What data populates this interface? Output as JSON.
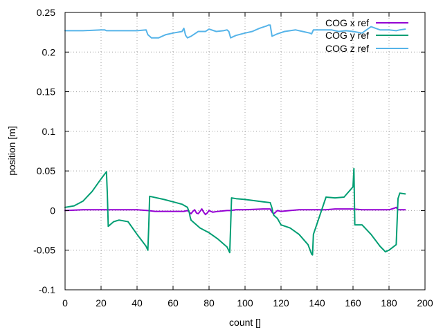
{
  "chart_data": {
    "type": "line",
    "title": "",
    "xlabel": "count []",
    "ylabel": "position [m]",
    "xlim": [
      0,
      200
    ],
    "ylim": [
      -0.1,
      0.25
    ],
    "xticks": [
      "0",
      "20",
      "40",
      "60",
      "80",
      "100",
      "120",
      "140",
      "160",
      "180",
      "200"
    ],
    "yticks": [
      "-0.1",
      "-0.05",
      "0",
      "0.05",
      "0.1",
      "0.15",
      "0.2",
      "0.25"
    ],
    "grid": true,
    "legend_position": "top-right",
    "series": [
      {
        "name": "COG x ref",
        "color": "#9400d3",
        "x": [
          0,
          10,
          20,
          23,
          30,
          40,
          46,
          50,
          60,
          66,
          68,
          69,
          70,
          71,
          72,
          73,
          74,
          75,
          76,
          77,
          78,
          79,
          80,
          82,
          85,
          90,
          92,
          95,
          100,
          110,
          114,
          115,
          116,
          117,
          118,
          120,
          125,
          130,
          138,
          145,
          150,
          155,
          160,
          165,
          170,
          175,
          180,
          183,
          184,
          185,
          189
        ],
        "y": [
          0.0,
          0.001,
          0.001,
          0.001,
          0.001,
          0.001,
          0.0,
          -0.001,
          -0.001,
          -0.001,
          0.0,
          -0.002,
          -0.004,
          -0.001,
          0.001,
          -0.003,
          -0.004,
          -0.001,
          0.002,
          -0.002,
          -0.005,
          -0.003,
          0.0,
          -0.002,
          -0.001,
          0.0,
          0.0,
          0.001,
          0.001,
          0.002,
          0.002,
          -0.002,
          -0.004,
          -0.002,
          0.0,
          -0.001,
          0.0,
          0.001,
          0.001,
          0.001,
          0.002,
          0.002,
          0.002,
          0.001,
          0.001,
          0.001,
          0.001,
          0.003,
          0.004,
          0.001,
          0.001
        ]
      },
      {
        "name": "COG y ref",
        "color": "#009e73",
        "x": [
          0,
          5,
          10,
          15,
          20,
          23,
          23.5,
          24,
          27,
          30,
          35,
          40,
          45,
          46,
          46.5,
          47,
          55,
          60,
          65,
          68,
          69,
          69.5,
          70,
          75,
          80,
          85,
          90,
          91.5,
          92,
          92.5,
          95,
          100,
          110,
          114,
          115,
          115.5,
          116,
          118,
          120,
          125,
          130,
          135,
          137,
          137.5,
          138,
          145,
          150,
          155,
          160,
          160.5,
          161,
          165,
          170,
          175,
          178,
          180,
          184,
          185,
          186,
          189
        ],
        "y": [
          0.004,
          0.006,
          0.012,
          0.024,
          0.04,
          0.049,
          0.02,
          -0.02,
          -0.014,
          -0.012,
          -0.014,
          -0.03,
          -0.045,
          -0.05,
          -0.02,
          0.018,
          0.014,
          0.011,
          0.008,
          0.004,
          -0.002,
          -0.008,
          -0.012,
          -0.022,
          -0.028,
          -0.036,
          -0.046,
          -0.053,
          -0.02,
          0.016,
          0.015,
          0.014,
          0.011,
          0.01,
          0.003,
          -0.003,
          -0.006,
          -0.01,
          -0.018,
          -0.022,
          -0.03,
          -0.043,
          -0.055,
          -0.056,
          -0.03,
          0.017,
          0.016,
          0.017,
          0.03,
          0.053,
          -0.018,
          -0.018,
          -0.03,
          -0.045,
          -0.052,
          -0.05,
          -0.043,
          0.015,
          0.022,
          0.021
        ]
      },
      {
        "name": "COG z ref",
        "color": "#56b4e9",
        "x": [
          0,
          10,
          20,
          22,
          23,
          25,
          30,
          40,
          45,
          46,
          48,
          52,
          56,
          60,
          65,
          66,
          67,
          68,
          70,
          74,
          78,
          80,
          84,
          88,
          90,
          91,
          92,
          95,
          100,
          104,
          108,
          112,
          113,
          114,
          115,
          118,
          122,
          128,
          132,
          136,
          137,
          138,
          142,
          148,
          152,
          156,
          160,
          165,
          170,
          175,
          180,
          184,
          186,
          189
        ],
        "y": [
          0.227,
          0.227,
          0.228,
          0.228,
          0.227,
          0.227,
          0.227,
          0.227,
          0.228,
          0.222,
          0.218,
          0.218,
          0.222,
          0.224,
          0.226,
          0.23,
          0.221,
          0.218,
          0.22,
          0.226,
          0.226,
          0.229,
          0.226,
          0.227,
          0.228,
          0.226,
          0.218,
          0.221,
          0.224,
          0.226,
          0.23,
          0.233,
          0.234,
          0.234,
          0.22,
          0.223,
          0.226,
          0.228,
          0.226,
          0.224,
          0.223,
          0.228,
          0.228,
          0.228,
          0.226,
          0.227,
          0.226,
          0.224,
          0.232,
          0.228,
          0.228,
          0.227,
          0.228,
          0.229
        ]
      }
    ]
  }
}
